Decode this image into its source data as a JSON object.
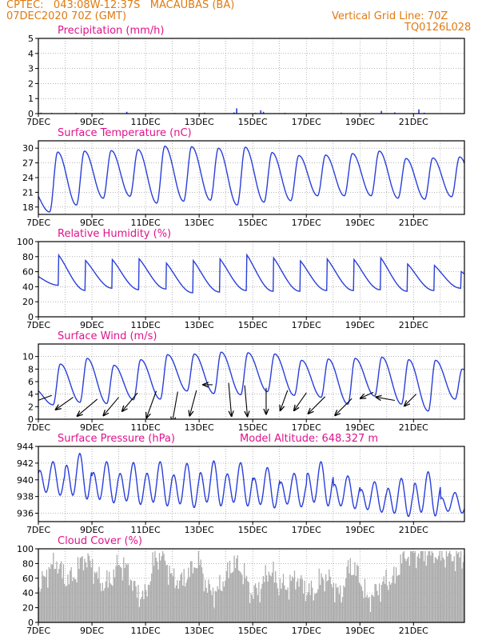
{
  "header": {
    "station": "CPTEC:   043:08W-12:37S   MACAUBAS (BA)",
    "run": "07DEC2020 70Z (GMT)",
    "grid_note": "Vertical Grid Line: 70Z",
    "code": "TQ0126L028"
  },
  "colors": {
    "line": "#2a3fd9",
    "title": "#e0138c",
    "header": "#e07a10",
    "cloud": "#aaaaaa",
    "precip": "#2a3fd9",
    "arrow": "#000000"
  },
  "x_labels": [
    "7DEC",
    "9DEC",
    "11DEC",
    "13DEC",
    "15DEC",
    "17DEC",
    "19DEC",
    "21DEC"
  ],
  "chart_data": [
    {
      "type": "bar",
      "title": "Precipitation (mm/h)",
      "ylim": [
        0,
        5
      ],
      "yticks": [
        0,
        1,
        2,
        3,
        4,
        5
      ],
      "x": "days since 7DEC 00Z",
      "points": [
        [
          0.1,
          0.06
        ],
        [
          0.5,
          0.04
        ],
        [
          1.4,
          0.05
        ],
        [
          2.4,
          0.05
        ],
        [
          3.3,
          0.12
        ],
        [
          4.2,
          0.05
        ],
        [
          5.1,
          0.04
        ],
        [
          6.2,
          0.06
        ],
        [
          7.3,
          0.08
        ],
        [
          7.4,
          0.35
        ],
        [
          8.1,
          0.05
        ],
        [
          8.3,
          0.22
        ],
        [
          8.4,
          0.12
        ],
        [
          9.2,
          0.05
        ],
        [
          10.1,
          0.05
        ],
        [
          11.3,
          0.06
        ],
        [
          12.2,
          0.04
        ],
        [
          12.8,
          0.18
        ],
        [
          13.3,
          0.08
        ],
        [
          14.2,
          0.28
        ],
        [
          14.4,
          0.06
        ]
      ]
    },
    {
      "type": "line",
      "title": "Surface Temperature (nC)",
      "ylim": [
        16.5,
        31.5
      ],
      "yticks": [
        18,
        21,
        24,
        27,
        30
      ],
      "daily_min": [
        17.0,
        18.4,
        19.8,
        20.2,
        18.8,
        19.2,
        19.4,
        18.4,
        19.0,
        19.3,
        20.3,
        20.3,
        20.3,
        19.8,
        19.6,
        20.1
      ],
      "daily_max": [
        29.2,
        29.4,
        29.5,
        29.7,
        30.4,
        30.3,
        30.0,
        30.2,
        29.1,
        28.5,
        28.6,
        28.9,
        29.4,
        27.9,
        28.0,
        28.2
      ]
    },
    {
      "type": "line",
      "title": "Relative Humidity (%)",
      "ylim": [
        0,
        100
      ],
      "yticks": [
        0,
        20,
        40,
        60,
        80,
        100
      ],
      "daily_max": [
        91,
        82,
        84,
        85,
        80,
        84,
        86,
        93,
        88,
        83,
        86,
        85,
        88,
        78,
        75,
        65
      ],
      "daily_min": [
        42,
        35,
        38,
        36,
        37,
        32,
        33,
        35,
        34,
        34,
        35,
        35,
        36,
        34,
        35,
        38
      ]
    },
    {
      "type": "line",
      "title": "Surface Wind (m/s)",
      "ylim": [
        0,
        12
      ],
      "yticks": [
        0,
        2,
        4,
        6,
        8,
        10
      ],
      "daily_max": [
        8.8,
        9.7,
        8.6,
        9.5,
        10.3,
        10.4,
        10.7,
        10.6,
        10.4,
        9.4,
        9.6,
        9.7,
        9.9,
        9.5,
        9.4,
        8.0
      ],
      "daily_min": [
        2.3,
        2.7,
        2.5,
        3.1,
        3.2,
        4.5,
        4.1,
        3.9,
        4.4,
        3.8,
        3.5,
        2.4,
        3.7,
        2.4,
        1.3,
        3.2
      ],
      "vectors": [
        [
          0.5,
          3.8,
          200,
          5
        ],
        [
          1.3,
          3.5,
          215,
          4.5
        ],
        [
          2.2,
          3.2,
          220,
          5.5
        ],
        [
          3.0,
          3.5,
          230,
          5
        ],
        [
          3.7,
          4.2,
          230,
          5
        ],
        [
          4.4,
          4.5,
          250,
          6
        ],
        [
          5.2,
          4.4,
          260,
          6.5
        ],
        [
          5.9,
          4.6,
          255,
          5.5
        ],
        [
          6.5,
          5.5,
          180,
          2
        ],
        [
          7.1,
          5.8,
          275,
          7
        ],
        [
          7.7,
          5.4,
          275,
          6.5
        ],
        [
          8.5,
          5.0,
          270,
          5.5
        ],
        [
          9.3,
          4.6,
          250,
          4.5
        ],
        [
          10.0,
          4.2,
          235,
          4.5
        ],
        [
          10.7,
          3.6,
          225,
          5
        ],
        [
          11.7,
          3.3,
          225,
          5
        ],
        [
          12.5,
          4.3,
          205,
          3
        ],
        [
          13.3,
          3.0,
          170,
          4
        ],
        [
          14.1,
          4.0,
          225,
          3.5
        ]
      ]
    },
    {
      "type": "line",
      "title": "Surface Pressure (hPa)",
      "annotation": "Model Altitude: 648.327 m",
      "ylim": [
        935,
        944
      ],
      "yticks": [
        936,
        938,
        940,
        942,
        944
      ],
      "daily_max": [
        942.2,
        943.2,
        942.2,
        942.1,
        942.2,
        942.0,
        942.3,
        942.1,
        941.5,
        940.8,
        942.2,
        940.5,
        939.8,
        940.2,
        941.0,
        938.5
      ],
      "daily_min": [
        937.8,
        937.2,
        936.8,
        936.6,
        936.4,
        936.2,
        936.4,
        936.4,
        936.2,
        936.4,
        936.4,
        936.2,
        935.8,
        935.2,
        935.2,
        935.8
      ]
    },
    {
      "type": "bar",
      "title": "Cloud Cover (%)",
      "ylim": [
        0,
        100
      ],
      "yticks": [
        0,
        20,
        40,
        60,
        80,
        100
      ],
      "smooth": [
        45,
        70,
        82,
        58,
        62,
        88,
        78,
        52,
        55,
        80,
        72,
        40,
        35,
        85,
        92,
        60,
        55,
        68,
        86,
        45,
        40,
        60,
        82,
        68,
        38,
        48,
        72,
        52,
        48,
        62,
        45,
        40,
        62,
        55,
        35,
        78,
        65,
        30,
        42,
        55,
        58,
        88,
        94,
        92,
        96,
        90,
        92,
        88,
        90
      ]
    }
  ]
}
